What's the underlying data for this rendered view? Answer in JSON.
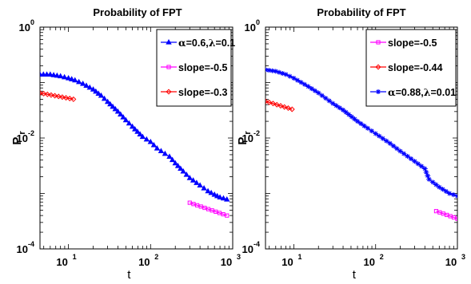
{
  "chart_data": [
    {
      "type": "line",
      "title": "Probability  of  FPT",
      "xlabel": "t",
      "ylabel": "P",
      "ylabel_sub": "r",
      "xscale": "log",
      "yscale": "log",
      "xlim": [
        4.5,
        1000
      ],
      "ylim": [
        0.0001,
        1
      ],
      "xticks": [
        {
          "base": "10",
          "exp": "1"
        },
        {
          "base": "10",
          "exp": "2"
        },
        {
          "base": "10",
          "exp": "3"
        }
      ],
      "yticks": [
        {
          "base": "10",
          "exp": "0"
        },
        {
          "base": "10",
          "exp": "-2"
        },
        {
          "base": "10",
          "exp": "-4"
        }
      ],
      "legend_position": "top-right",
      "series": [
        {
          "name": "α=0.6,λ=0.1",
          "legend_parts": [
            "α",
            "=0.6,",
            "λ",
            "=0.1"
          ],
          "color": "#0000ff",
          "marker": "triangle-up",
          "x": [
            4.5,
            6,
            8,
            10,
            12,
            15,
            20,
            25,
            30,
            40,
            50,
            60,
            80,
            100,
            120,
            150,
            170,
            200,
            250,
            300,
            400,
            500,
            600,
            700,
            850
          ],
          "y": [
            0.14,
            0.14,
            0.13,
            0.12,
            0.11,
            0.095,
            0.075,
            0.058,
            0.045,
            0.03,
            0.021,
            0.016,
            0.0105,
            0.0085,
            0.0065,
            0.0052,
            0.0046,
            0.0035,
            0.0025,
            0.0019,
            0.0014,
            0.0011,
            0.00095,
            0.00085,
            0.00078
          ]
        },
        {
          "name": "slope=-0.5",
          "legend_parts": [
            "slope=-0.5"
          ],
          "color": "#ff00ff",
          "marker": "square",
          "x": [
            300,
            850
          ],
          "y": [
            0.00068,
            0.0004
          ]
        },
        {
          "name": "slope=-0.3",
          "legend_parts": [
            "slope=-0.3"
          ],
          "color": "#ff0000",
          "marker": "diamond",
          "x": [
            4.5,
            11.5
          ],
          "y": [
            0.065,
            0.05
          ]
        }
      ]
    },
    {
      "type": "line",
      "title": "Probability  of  FPT",
      "xlabel": "t",
      "ylabel": "P",
      "ylabel_sub": "r",
      "xscale": "log",
      "yscale": "log",
      "xlim": [
        4.5,
        1000
      ],
      "ylim": [
        0.0001,
        1
      ],
      "xticks": [
        {
          "base": "10",
          "exp": "1"
        },
        {
          "base": "10",
          "exp": "2"
        },
        {
          "base": "10",
          "exp": "3"
        }
      ],
      "yticks": [
        {
          "base": "10",
          "exp": "0"
        },
        {
          "base": "10",
          "exp": "-2"
        },
        {
          "base": "10",
          "exp": "-4"
        }
      ],
      "legend_position": "top-right",
      "series": [
        {
          "name": "slope=-0.5",
          "legend_parts": [
            "slope=-0.5"
          ],
          "color": "#ff00ff",
          "marker": "square",
          "x": [
            550,
            1000
          ],
          "y": [
            0.00048,
            0.00035
          ]
        },
        {
          "name": "slope=-0.44",
          "legend_parts": [
            "slope=-0.44"
          ],
          "color": "#ff0000",
          "marker": "diamond",
          "x": [
            4.5,
            9.5
          ],
          "y": [
            0.046,
            0.033
          ]
        },
        {
          "name": "α=0.88,λ=0.01",
          "legend_parts": [
            "α",
            "=0.88,",
            "λ",
            "=0.01"
          ],
          "color": "#0000ff",
          "marker": "star",
          "x": [
            4.5,
            6,
            8,
            10,
            15,
            20,
            30,
            40,
            60,
            80,
            100,
            150,
            200,
            300,
            400,
            450,
            500,
            600,
            800,
            1000
          ],
          "y": [
            0.17,
            0.16,
            0.14,
            0.12,
            0.085,
            0.065,
            0.042,
            0.032,
            0.02,
            0.015,
            0.012,
            0.008,
            0.0058,
            0.0038,
            0.0028,
            0.0018,
            0.0016,
            0.0013,
            0.001,
            0.0009
          ]
        }
      ]
    }
  ]
}
